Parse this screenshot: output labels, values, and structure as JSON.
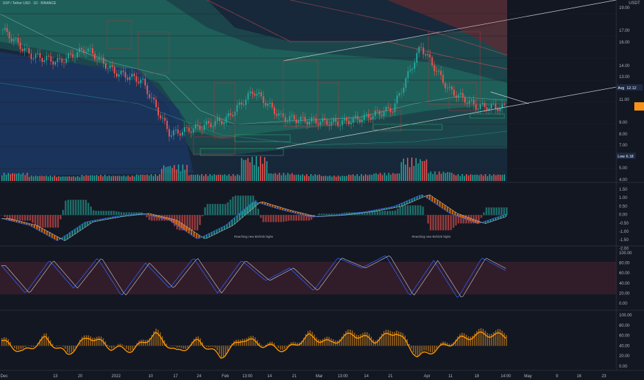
{
  "header": {
    "symbol": "SXP / Tether USD · 1D · BINANCE"
  },
  "price_axis": {
    "currency": "USDT",
    "ticks": [
      "19.00",
      "17.00",
      "16.00",
      "14.00",
      "13.00",
      "11.00",
      "9.00",
      "8.00",
      "7.00",
      "5.00",
      "4.00"
    ]
  },
  "price_labels": {
    "avg_label": "Avg",
    "avg_value": "12.12",
    "low_label": "Low",
    "low_value": "6.18"
  },
  "macd_axis": {
    "ticks": [
      "1.50",
      "1.00",
      "0.50",
      "0.00",
      "-0.50",
      "-1.00",
      "-1.50",
      "-2.00"
    ]
  },
  "rsi_axis": {
    "ticks": [
      "100.00",
      "80.00",
      "60.00",
      "40.00",
      "20.00",
      "0.00"
    ]
  },
  "osc_axis": {
    "ticks": [
      "100.00",
      "80.00",
      "60.00",
      "40.00",
      "20.00",
      "0.00"
    ]
  },
  "annotations": [
    "Reaching new 9ish/25 highs",
    "Reaching new 9ish/25 highs"
  ],
  "time_axis": {
    "labels": [
      "Dec",
      "13",
      "20",
      "2022",
      "10",
      "17",
      "24",
      "Feb",
      "13:00",
      "14",
      "21",
      "Mar",
      "13:00",
      "14",
      "21",
      "Apr",
      "11",
      "18",
      "14:00",
      "May",
      "9",
      "16",
      "23"
    ]
  },
  "colors": {
    "up": "#26a69a",
    "down": "#ef5350",
    "accent_orange": "#ff9800",
    "price_tag": "#f7931a",
    "avg_tag": "#1e2a44"
  },
  "chart_data": [
    {
      "type": "candlestick",
      "title": "SXP / Tether USD · 1D · BINANCE",
      "ylabel": "USDT",
      "ylim": [
        4,
        19.5
      ],
      "x": [
        "Dec",
        "13",
        "20",
        "2022",
        "10",
        "17",
        "24",
        "Feb",
        "13:00",
        "14",
        "21",
        "Mar",
        "13:00",
        "14",
        "21",
        "Apr",
        "11",
        "18",
        "14:00"
      ],
      "close": [
        17.5,
        15.2,
        14.6,
        15.8,
        13.7,
        12.9,
        8.1,
        8.7,
        9.4,
        12.0,
        9.6,
        9.3,
        9.1,
        9.6,
        10.4,
        16.0,
        12.1,
        10.6,
        10.5
      ],
      "volume": [
        0.4,
        0.2,
        0.15,
        0.25,
        0.2,
        0.3,
        1.0,
        0.3,
        0.3,
        1.6,
        0.4,
        0.3,
        0.2,
        0.3,
        0.4,
        1.5,
        0.5,
        0.3,
        0.3
      ]
    },
    {
      "type": "line",
      "title": "MACD",
      "ylim": [
        -2.0,
        1.5
      ],
      "series": [
        {
          "values": [
            -0.2,
            -0.6,
            -1.5,
            -0.4,
            -0.1,
            0.1,
            -0.3,
            -1.4,
            -0.6,
            0.8,
            0.3,
            -0.1,
            0.0,
            0.2,
            0.5,
            1.2,
            0.1,
            -0.5,
            0.05
          ]
        }
      ]
    },
    {
      "type": "line",
      "title": "Stochastic RSI",
      "ylim": [
        0,
        100
      ],
      "series": [
        {
          "values": [
            75,
            20,
            85,
            30,
            90,
            15,
            80,
            30,
            90,
            20,
            85,
            45,
            70,
            25,
            90,
            70,
            95,
            15,
            85,
            10,
            90,
            65
          ]
        }
      ]
    },
    {
      "type": "bar",
      "title": "Oscillator",
      "ylim": [
        0,
        100
      ],
      "values": [
        55,
        30,
        60,
        25,
        65,
        40,
        35,
        70,
        30,
        55,
        20,
        60,
        45,
        35,
        65,
        50,
        70,
        55,
        75,
        20,
        40,
        60,
        70,
        65
      ]
    }
  ]
}
